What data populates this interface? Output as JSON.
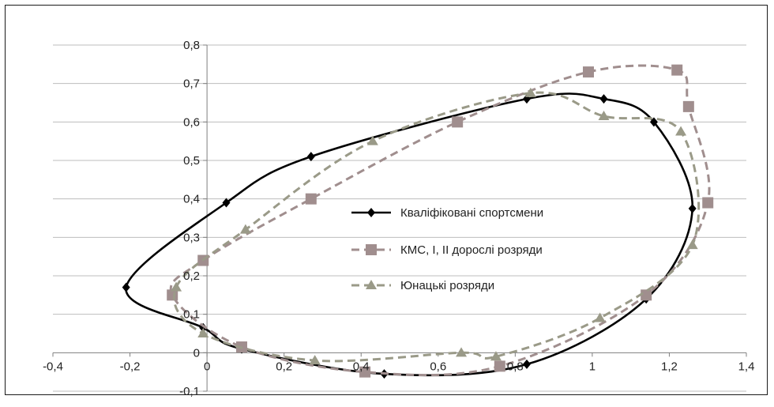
{
  "chart_data": {
    "type": "line",
    "title": "",
    "xlabel": "",
    "ylabel": "",
    "xlim": [
      -0.4,
      1.4
    ],
    "ylim": [
      -0.1,
      0.8
    ],
    "x_ticks": [
      "-0,4",
      "-0,2",
      "0",
      "0,2",
      "0,4",
      "0,6",
      "0,8",
      "1",
      "1,2",
      "1,4"
    ],
    "y_ticks": [
      "-0,1",
      "0",
      "0,1",
      "0,2",
      "0,3",
      "0,4",
      "0,5",
      "0,6",
      "0,7",
      "0,8"
    ],
    "grid": "horizontal",
    "legend_position": "center",
    "series": [
      {
        "name": "Кваліфіковані спортсмени",
        "color": "#000000",
        "marker": "diamond",
        "line_style": "solid",
        "points": [
          [
            -0.21,
            0.17
          ],
          [
            0.05,
            0.39
          ],
          [
            0.27,
            0.51
          ],
          [
            0.83,
            0.66
          ],
          [
            1.03,
            0.66
          ],
          [
            1.16,
            0.6
          ],
          [
            1.26,
            0.375
          ],
          [
            1.14,
            0.14
          ],
          [
            0.83,
            -0.03
          ],
          [
            0.46,
            -0.055
          ],
          [
            0.09,
            0.01
          ],
          [
            -0.01,
            0.065
          ],
          [
            -0.21,
            0.17
          ]
        ]
      },
      {
        "name": "КМС, І, ІІ дорослі розряди",
        "color": "#a08e8e",
        "marker": "square",
        "line_style": "dashed",
        "points": [
          [
            -0.01,
            0.24
          ],
          [
            0.27,
            0.4
          ],
          [
            0.65,
            0.6
          ],
          [
            0.99,
            0.73
          ],
          [
            1.22,
            0.735
          ],
          [
            1.25,
            0.64
          ],
          [
            1.3,
            0.39
          ],
          [
            1.14,
            0.15
          ],
          [
            0.76,
            -0.035
          ],
          [
            0.41,
            -0.05
          ],
          [
            0.09,
            0.015
          ],
          [
            -0.09,
            0.15
          ],
          [
            -0.01,
            0.24
          ]
        ]
      },
      {
        "name": "Юнацькі розряди",
        "color": "#9a9a88",
        "marker": "triangle",
        "line_style": "dashed",
        "points": [
          [
            -0.08,
            0.17
          ],
          [
            0.1,
            0.32
          ],
          [
            0.43,
            0.55
          ],
          [
            0.84,
            0.675
          ],
          [
            1.03,
            0.615
          ],
          [
            1.23,
            0.575
          ],
          [
            1.26,
            0.28
          ],
          [
            1.02,
            0.09
          ],
          [
            0.75,
            -0.01
          ],
          [
            0.66,
            0.0
          ],
          [
            0.28,
            -0.02
          ],
          [
            -0.01,
            0.05
          ],
          [
            -0.08,
            0.17
          ]
        ]
      }
    ]
  }
}
